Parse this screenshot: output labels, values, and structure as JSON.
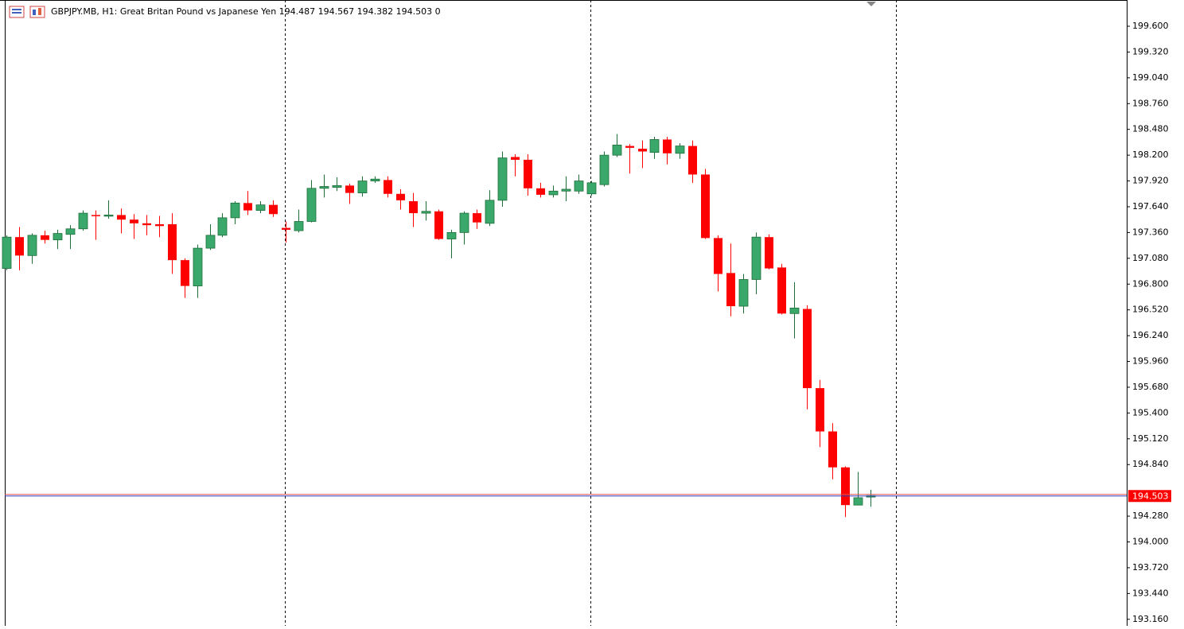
{
  "chart_data": {
    "type": "candlestick",
    "title": "GBPJPY.MB, H1:  Great Britan Pound vs Japanese Yen  194.487 194.567 194.382 194.503  0",
    "up_color": "#3aa86b",
    "down_color": "#ff0000",
    "open": [
      196.97,
      197.31,
      197.11,
      197.33,
      197.28,
      197.34,
      197.4,
      197.55,
      197.54,
      197.55,
      197.5,
      197.46,
      197.45,
      197.45,
      197.06,
      196.78,
      197.19,
      197.33,
      197.52,
      197.68,
      197.6,
      197.66,
      197.41,
      197.38,
      197.48,
      197.84,
      197.85,
      197.87,
      197.79,
      197.92,
      197.93,
      197.78,
      197.7,
      197.57,
      197.59,
      197.29,
      197.36,
      197.57,
      197.46,
      197.71,
      198.18,
      198.15,
      197.84,
      197.77,
      197.81,
      197.81,
      197.78,
      197.88,
      198.2,
      198.3,
      198.27,
      198.23,
      198.37,
      198.22,
      198.3,
      197.99,
      197.3,
      196.92,
      196.56,
      196.85,
      197.31,
      196.98,
      196.48,
      196.53,
      195.67,
      195.2,
      194.81,
      194.4,
      194.487
    ],
    "high": [
      197.33,
      197.42,
      197.35,
      197.38,
      197.39,
      197.44,
      197.6,
      197.6,
      197.71,
      197.62,
      197.56,
      197.55,
      197.54,
      197.57,
      197.08,
      197.23,
      197.45,
      197.57,
      197.7,
      197.81,
      197.7,
      197.71,
      197.48,
      197.61,
      197.93,
      197.99,
      197.96,
      197.89,
      197.97,
      197.97,
      197.97,
      197.83,
      197.79,
      197.7,
      197.61,
      197.39,
      197.59,
      197.61,
      197.82,
      198.24,
      198.21,
      198.21,
      197.9,
      197.87,
      197.97,
      197.99,
      197.92,
      198.24,
      198.43,
      198.32,
      198.36,
      198.4,
      198.4,
      198.33,
      198.36,
      198.05,
      197.33,
      197.24,
      196.91,
      197.36,
      197.34,
      197.02,
      196.82,
      196.57,
      195.76,
      195.29,
      194.82,
      194.76,
      194.567
    ],
    "low": [
      196.95,
      196.95,
      197.02,
      197.24,
      197.18,
      197.18,
      197.38,
      197.28,
      197.51,
      197.35,
      197.29,
      197.33,
      197.31,
      196.91,
      196.65,
      196.65,
      197.17,
      197.31,
      197.45,
      197.55,
      197.57,
      197.53,
      197.25,
      197.36,
      197.47,
      197.74,
      197.81,
      197.67,
      197.75,
      197.9,
      197.74,
      197.61,
      197.42,
      197.49,
      197.28,
      197.08,
      197.23,
      197.4,
      197.43,
      197.64,
      197.97,
      197.76,
      197.74,
      197.74,
      197.7,
      197.78,
      197.76,
      197.86,
      198.18,
      198.0,
      198.06,
      198.16,
      198.1,
      198.16,
      197.9,
      197.29,
      196.72,
      196.45,
      196.48,
      196.69,
      196.96,
      196.47,
      196.21,
      195.44,
      195.03,
      194.68,
      194.27,
      194.4,
      194.382
    ],
    "close": [
      197.31,
      197.11,
      197.33,
      197.28,
      197.35,
      197.4,
      197.57,
      197.54,
      197.55,
      197.5,
      197.46,
      197.44,
      197.43,
      197.06,
      196.78,
      197.19,
      197.33,
      197.52,
      197.68,
      197.6,
      197.66,
      197.56,
      197.39,
      197.48,
      197.84,
      197.86,
      197.87,
      197.79,
      197.92,
      197.94,
      197.78,
      197.71,
      197.57,
      197.59,
      197.29,
      197.36,
      197.57,
      197.47,
      197.71,
      198.17,
      198.15,
      197.84,
      197.77,
      197.81,
      197.83,
      197.92,
      197.9,
      198.2,
      198.31,
      198.28,
      198.24,
      198.37,
      198.22,
      198.3,
      197.99,
      197.3,
      196.91,
      196.56,
      196.85,
      197.31,
      196.97,
      196.48,
      196.54,
      195.67,
      195.2,
      194.81,
      194.4,
      194.48,
      194.503
    ],
    "current_price": 194.503,
    "ylim": [
      193.089,
      199.885
    ],
    "yticks": [
      {
        "value": 199.6,
        "label": "199.600"
      },
      {
        "value": 199.32,
        "label": "199.320"
      },
      {
        "value": 199.04,
        "label": "199.040"
      },
      {
        "value": 198.76,
        "label": "198.760"
      },
      {
        "value": 198.48,
        "label": "198.480"
      },
      {
        "value": 198.2,
        "label": "198.200"
      },
      {
        "value": 197.92,
        "label": "197.920"
      },
      {
        "value": 197.64,
        "label": "197.640"
      },
      {
        "value": 197.36,
        "label": "197.360"
      },
      {
        "value": 197.08,
        "label": "197.080"
      },
      {
        "value": 196.8,
        "label": "196.800"
      },
      {
        "value": 196.52,
        "label": "196.520"
      },
      {
        "value": 196.24,
        "label": "196.240"
      },
      {
        "value": 195.96,
        "label": "195.960"
      },
      {
        "value": 195.68,
        "label": "195.680"
      },
      {
        "value": 195.4,
        "label": "195.400"
      },
      {
        "value": 195.12,
        "label": "195.120"
      },
      {
        "value": 194.84,
        "label": "194.840"
      },
      {
        "value": 194.28,
        "label": "194.280"
      },
      {
        "value": 194.0,
        "label": "194.000"
      },
      {
        "value": 193.72,
        "label": "193.720"
      },
      {
        "value": 193.44,
        "label": "193.440"
      },
      {
        "value": 193.16,
        "label": "193.160"
      }
    ]
  }
}
